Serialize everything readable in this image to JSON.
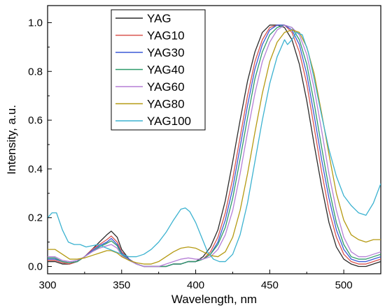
{
  "chart_data": {
    "type": "line",
    "title": "",
    "xlabel": "Wavelength, nm",
    "ylabel": "Intensity, a.u.",
    "xlim": [
      300,
      525
    ],
    "ylim": [
      -0.03,
      1.07
    ],
    "x_ticks": [
      "300",
      "350",
      "400",
      "450",
      "500"
    ],
    "y_ticks": [
      "0.0",
      "0.2",
      "0.4",
      "0.6",
      "0.8",
      "1.0"
    ],
    "grid": false,
    "legend_position": "top-left",
    "series": [
      {
        "name": "YAG",
        "color": "#2b2b2b",
        "x": [
          300,
          305,
          310,
          315,
          320,
          325,
          330,
          335,
          340,
          343,
          347,
          350,
          355,
          360,
          365,
          370,
          375,
          380,
          385,
          390,
          395,
          400,
          405,
          410,
          415,
          420,
          425,
          430,
          435,
          440,
          445,
          450,
          455,
          460,
          465,
          470,
          475,
          480,
          485,
          490,
          495,
          500,
          505,
          510,
          515,
          520,
          525
        ],
        "y": [
          0.02,
          0.02,
          0.01,
          0.01,
          0.02,
          0.04,
          0.07,
          0.1,
          0.13,
          0.145,
          0.12,
          0.07,
          0.03,
          0.01,
          0,
          0,
          0,
          0,
          0.01,
          0.01,
          0.02,
          0.02,
          0.04,
          0.08,
          0.15,
          0.27,
          0.43,
          0.6,
          0.76,
          0.88,
          0.96,
          0.99,
          0.99,
          0.98,
          0.93,
          0.83,
          0.68,
          0.5,
          0.33,
          0.18,
          0.08,
          0.03,
          0.01,
          0,
          0,
          0.01,
          0.02
        ]
      },
      {
        "name": "YAG10",
        "color": "#d9534f",
        "x": [
          300,
          305,
          310,
          315,
          320,
          325,
          330,
          335,
          340,
          343,
          347,
          350,
          355,
          360,
          365,
          370,
          375,
          380,
          385,
          390,
          395,
          400,
          405,
          410,
          415,
          420,
          425,
          430,
          435,
          440,
          445,
          450,
          455,
          460,
          465,
          470,
          475,
          480,
          485,
          490,
          495,
          500,
          505,
          510,
          515,
          520,
          525
        ],
        "y": [
          0.025,
          0.025,
          0.015,
          0.01,
          0.02,
          0.04,
          0.07,
          0.09,
          0.11,
          0.125,
          0.1,
          0.06,
          0.03,
          0.01,
          0,
          0,
          0,
          0,
          0.01,
          0.01,
          0.02,
          0.02,
          0.03,
          0.06,
          0.12,
          0.22,
          0.36,
          0.53,
          0.7,
          0.84,
          0.93,
          0.98,
          0.99,
          0.99,
          0.96,
          0.88,
          0.75,
          0.57,
          0.39,
          0.23,
          0.12,
          0.05,
          0.02,
          0.01,
          0.01,
          0.02,
          0.03
        ]
      },
      {
        "name": "YAG30",
        "color": "#3c5ad6",
        "x": [
          300,
          305,
          310,
          315,
          320,
          325,
          330,
          335,
          340,
          343,
          347,
          350,
          355,
          360,
          365,
          370,
          375,
          380,
          385,
          390,
          395,
          400,
          405,
          410,
          415,
          420,
          425,
          430,
          435,
          440,
          445,
          450,
          455,
          460,
          465,
          470,
          475,
          480,
          485,
          490,
          495,
          500,
          505,
          510,
          515,
          520,
          525
        ],
        "y": [
          0.03,
          0.03,
          0.02,
          0.015,
          0.02,
          0.04,
          0.065,
          0.085,
          0.1,
          0.115,
          0.09,
          0.055,
          0.03,
          0.01,
          0,
          0,
          0,
          0,
          0.01,
          0.01,
          0.02,
          0.02,
          0.03,
          0.05,
          0.1,
          0.19,
          0.32,
          0.49,
          0.66,
          0.81,
          0.91,
          0.97,
          0.99,
          0.99,
          0.97,
          0.91,
          0.79,
          0.62,
          0.44,
          0.28,
          0.15,
          0.07,
          0.03,
          0.02,
          0.02,
          0.03,
          0.04
        ]
      },
      {
        "name": "YAG40",
        "color": "#2e9b6b",
        "x": [
          300,
          305,
          310,
          315,
          320,
          325,
          330,
          335,
          340,
          343,
          347,
          350,
          355,
          360,
          365,
          370,
          375,
          380,
          385,
          390,
          395,
          400,
          405,
          410,
          415,
          420,
          425,
          430,
          435,
          440,
          445,
          450,
          455,
          460,
          465,
          470,
          475,
          480,
          485,
          490,
          495,
          500,
          505,
          510,
          515,
          520,
          525
        ],
        "y": [
          0.035,
          0.035,
          0.02,
          0.015,
          0.02,
          0.04,
          0.06,
          0.08,
          0.095,
          0.105,
          0.085,
          0.05,
          0.025,
          0.01,
          0,
          0,
          0,
          0,
          0.01,
          0.01,
          0.02,
          0.02,
          0.03,
          0.05,
          0.09,
          0.16,
          0.28,
          0.44,
          0.61,
          0.77,
          0.88,
          0.95,
          0.98,
          0.99,
          0.98,
          0.93,
          0.83,
          0.67,
          0.49,
          0.32,
          0.18,
          0.09,
          0.04,
          0.03,
          0.03,
          0.04,
          0.05
        ]
      },
      {
        "name": "YAG60",
        "color": "#b57fd6",
        "x": [
          300,
          305,
          310,
          315,
          320,
          325,
          330,
          335,
          340,
          343,
          347,
          350,
          355,
          360,
          365,
          370,
          375,
          380,
          385,
          390,
          395,
          400,
          405,
          410,
          415,
          420,
          425,
          430,
          435,
          440,
          445,
          450,
          455,
          460,
          465,
          470,
          475,
          480,
          485,
          490,
          495,
          500,
          505,
          510,
          515,
          520,
          525
        ],
        "y": [
          0.04,
          0.04,
          0.025,
          0.02,
          0.025,
          0.04,
          0.06,
          0.075,
          0.085,
          0.09,
          0.075,
          0.045,
          0.025,
          0.01,
          0,
          0,
          0,
          0.01,
          0.02,
          0.03,
          0.035,
          0.03,
          0.03,
          0.04,
          0.07,
          0.13,
          0.23,
          0.38,
          0.55,
          0.71,
          0.84,
          0.92,
          0.97,
          0.99,
          0.98,
          0.95,
          0.87,
          0.73,
          0.56,
          0.38,
          0.23,
          0.12,
          0.06,
          0.04,
          0.04,
          0.05,
          0.06
        ]
      },
      {
        "name": "YAG80",
        "color": "#b59a12",
        "x": [
          300,
          305,
          310,
          315,
          320,
          325,
          330,
          335,
          340,
          343,
          347,
          350,
          355,
          360,
          365,
          370,
          375,
          380,
          385,
          390,
          395,
          400,
          405,
          410,
          415,
          420,
          425,
          430,
          435,
          440,
          445,
          450,
          455,
          460,
          465,
          470,
          475,
          480,
          485,
          490,
          495,
          500,
          505,
          510,
          515,
          520,
          525
        ],
        "y": [
          0.07,
          0.07,
          0.05,
          0.03,
          0.03,
          0.035,
          0.045,
          0.055,
          0.065,
          0.065,
          0.055,
          0.04,
          0.025,
          0.015,
          0.01,
          0.01,
          0.02,
          0.04,
          0.06,
          0.075,
          0.08,
          0.075,
          0.06,
          0.045,
          0.04,
          0.06,
          0.12,
          0.23,
          0.38,
          0.55,
          0.71,
          0.84,
          0.92,
          0.96,
          0.97,
          0.96,
          0.9,
          0.79,
          0.63,
          0.46,
          0.3,
          0.19,
          0.13,
          0.11,
          0.1,
          0.11,
          0.11
        ]
      },
      {
        "name": "YAG100",
        "color": "#3bb2d0",
        "x": [
          300,
          303,
          306,
          310,
          314,
          318,
          322,
          326,
          330,
          334,
          338,
          342,
          346,
          350,
          355,
          360,
          365,
          370,
          375,
          380,
          385,
          390,
          393,
          396,
          400,
          404,
          408,
          412,
          416,
          420,
          425,
          430,
          435,
          440,
          445,
          450,
          455,
          460,
          462,
          465,
          468,
          472,
          476,
          480,
          485,
          490,
          495,
          500,
          505,
          510,
          515,
          520,
          525
        ],
        "y": [
          0.2,
          0.22,
          0.22,
          0.15,
          0.1,
          0.09,
          0.09,
          0.08,
          0.085,
          0.09,
          0.08,
          0.07,
          0.06,
          0.05,
          0.04,
          0.04,
          0.05,
          0.07,
          0.1,
          0.14,
          0.19,
          0.235,
          0.24,
          0.225,
          0.18,
          0.12,
          0.06,
          0.03,
          0.02,
          0.02,
          0.05,
          0.13,
          0.26,
          0.43,
          0.6,
          0.75,
          0.86,
          0.93,
          0.91,
          0.93,
          0.96,
          0.95,
          0.88,
          0.77,
          0.62,
          0.48,
          0.37,
          0.29,
          0.25,
          0.22,
          0.21,
          0.26,
          0.34
        ]
      }
    ]
  }
}
